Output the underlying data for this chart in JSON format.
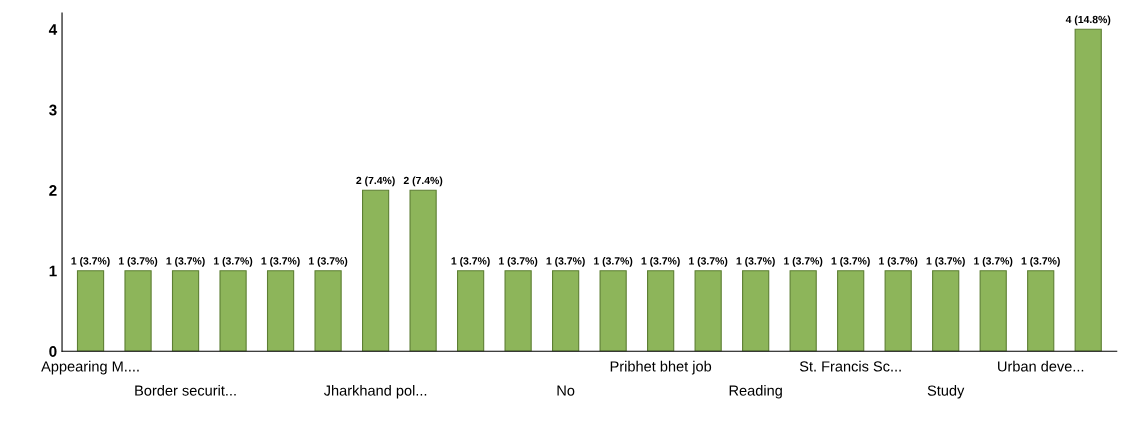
{
  "chart_data": {
    "type": "bar",
    "categories": [
      "Appearing M....",
      null,
      "Border securit...",
      null,
      null,
      null,
      "Jharkhand pol...",
      null,
      null,
      null,
      "No",
      null,
      "Pribhet bhet job",
      null,
      "Reading",
      null,
      "St. Francis Sc...",
      null,
      "Study",
      null,
      "Urban deve...",
      null
    ],
    "values": [
      1,
      1,
      1,
      1,
      1,
      1,
      2,
      2,
      1,
      1,
      1,
      1,
      1,
      1,
      1,
      1,
      1,
      1,
      1,
      1,
      1,
      4
    ],
    "value_labels": [
      "1 (3.7%)",
      "1 (3.7%)",
      "1 (3.7%)",
      "1 (3.7%)",
      "1 (3.7%)",
      "1 (3.7%)",
      "2 (7.4%)",
      "2 (7.4%)",
      "1 (3.7%)",
      "1 (3.7%)",
      "1 (3.7%)",
      "1 (3.7%)",
      "1 (3.7%)",
      "1 (3.7%)",
      "1 (3.7%)",
      "1 (3.7%)",
      "1 (3.7%)",
      "1 (3.7%)",
      "1 (3.7%)",
      "1 (3.7%)",
      "1 (3.7%)",
      "4 (14.8%)"
    ],
    "color": "#8db55a",
    "ylim": [
      0,
      4.2
    ],
    "yticks": [
      0,
      1,
      2,
      3,
      4
    ],
    "grid": false
  }
}
